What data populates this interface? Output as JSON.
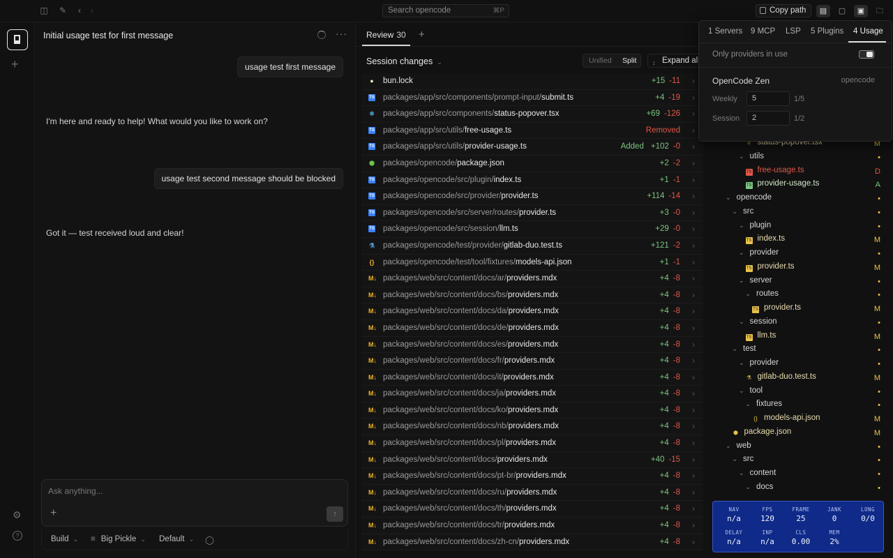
{
  "topbar": {
    "search_placeholder": "Search opencode",
    "search_shortcut": "⌘P",
    "copy_path_label": "Copy path"
  },
  "chat": {
    "title": "Initial usage test for first message",
    "messages": [
      {
        "role": "user",
        "text": "usage test first message"
      },
      {
        "role": "assistant",
        "text": "I'm here and ready to help! What would you like to work on?"
      },
      {
        "role": "user",
        "text": "usage test second message should be blocked"
      },
      {
        "role": "assistant",
        "text": "Got it — test received loud and clear!"
      }
    ],
    "composer_placeholder": "Ask anything...",
    "agent": "Build",
    "model": "Big Pickle",
    "variant": "Default"
  },
  "review": {
    "tab_label": "Review",
    "tab_count": "30",
    "session_changes_label": "Session changes",
    "unified_label": "Unified",
    "split_label": "Split",
    "expand_all_label": "Expand all",
    "files": [
      {
        "dir": "",
        "name": "bun.lock",
        "icon": "bun",
        "added": "+15",
        "removed": "-11"
      },
      {
        "dir": "packages/app/src/components/prompt-input/",
        "name": "submit.ts",
        "icon": "ts",
        "added": "+4",
        "removed": "-19"
      },
      {
        "dir": "packages/app/src/components/",
        "name": "status-popover.tsx",
        "icon": "react",
        "added": "+69",
        "removed": "-126"
      },
      {
        "dir": "packages/app/src/utils/",
        "name": "free-usage.ts",
        "icon": "ts",
        "status": "Removed"
      },
      {
        "dir": "packages/app/src/utils/",
        "name": "provider-usage.ts",
        "icon": "ts",
        "status": "Added",
        "added": "+102",
        "removed": "-0"
      },
      {
        "dir": "packages/opencode/",
        "name": "package.json",
        "icon": "node",
        "added": "+2",
        "removed": "-2"
      },
      {
        "dir": "packages/opencode/src/plugin/",
        "name": "index.ts",
        "icon": "ts",
        "added": "+1",
        "removed": "-1"
      },
      {
        "dir": "packages/opencode/src/provider/",
        "name": "provider.ts",
        "icon": "ts",
        "added": "+114",
        "removed": "-14"
      },
      {
        "dir": "packages/opencode/src/server/routes/",
        "name": "provider.ts",
        "icon": "ts",
        "added": "+3",
        "removed": "-0"
      },
      {
        "dir": "packages/opencode/src/session/",
        "name": "llm.ts",
        "icon": "ts",
        "added": "+29",
        "removed": "-0"
      },
      {
        "dir": "packages/opencode/test/provider/",
        "name": "gitlab-duo.test.ts",
        "icon": "test",
        "added": "+121",
        "removed": "-2"
      },
      {
        "dir": "packages/opencode/test/tool/fixtures/",
        "name": "models-api.json",
        "icon": "json",
        "added": "+1",
        "removed": "-1"
      },
      {
        "dir": "packages/web/src/content/docs/ar/",
        "name": "providers.mdx",
        "icon": "mdx",
        "added": "+4",
        "removed": "-8"
      },
      {
        "dir": "packages/web/src/content/docs/bs/",
        "name": "providers.mdx",
        "icon": "mdx",
        "added": "+4",
        "removed": "-8"
      },
      {
        "dir": "packages/web/src/content/docs/da/",
        "name": "providers.mdx",
        "icon": "mdx",
        "added": "+4",
        "removed": "-8"
      },
      {
        "dir": "packages/web/src/content/docs/de/",
        "name": "providers.mdx",
        "icon": "mdx",
        "added": "+4",
        "removed": "-8"
      },
      {
        "dir": "packages/web/src/content/docs/es/",
        "name": "providers.mdx",
        "icon": "mdx",
        "added": "+4",
        "removed": "-8"
      },
      {
        "dir": "packages/web/src/content/docs/fr/",
        "name": "providers.mdx",
        "icon": "mdx",
        "added": "+4",
        "removed": "-8"
      },
      {
        "dir": "packages/web/src/content/docs/it/",
        "name": "providers.mdx",
        "icon": "mdx",
        "added": "+4",
        "removed": "-8"
      },
      {
        "dir": "packages/web/src/content/docs/ja/",
        "name": "providers.mdx",
        "icon": "mdx",
        "added": "+4",
        "removed": "-8"
      },
      {
        "dir": "packages/web/src/content/docs/ko/",
        "name": "providers.mdx",
        "icon": "mdx",
        "added": "+4",
        "removed": "-8"
      },
      {
        "dir": "packages/web/src/content/docs/nb/",
        "name": "providers.mdx",
        "icon": "mdx",
        "added": "+4",
        "removed": "-8"
      },
      {
        "dir": "packages/web/src/content/docs/pl/",
        "name": "providers.mdx",
        "icon": "mdx",
        "added": "+4",
        "removed": "-8"
      },
      {
        "dir": "packages/web/src/content/docs/",
        "name": "providers.mdx",
        "icon": "mdx",
        "added": "+40",
        "removed": "-15"
      },
      {
        "dir": "packages/web/src/content/docs/pt-br/",
        "name": "providers.mdx",
        "icon": "mdx",
        "added": "+4",
        "removed": "-8"
      },
      {
        "dir": "packages/web/src/content/docs/ru/",
        "name": "providers.mdx",
        "icon": "mdx",
        "added": "+4",
        "removed": "-8"
      },
      {
        "dir": "packages/web/src/content/docs/th/",
        "name": "providers.mdx",
        "icon": "mdx",
        "added": "+4",
        "removed": "-8"
      },
      {
        "dir": "packages/web/src/content/docs/tr/",
        "name": "providers.mdx",
        "icon": "mdx",
        "added": "+4",
        "removed": "-8"
      },
      {
        "dir": "packages/web/src/content/docs/zh-cn/",
        "name": "providers.mdx",
        "icon": "mdx",
        "added": "+4",
        "removed": "-8"
      }
    ]
  },
  "tree": [
    {
      "name": "status-popover.tsx",
      "depth": 4,
      "type": "react",
      "status": "M"
    },
    {
      "name": "utils",
      "depth": 3,
      "type": "folder",
      "status": "•"
    },
    {
      "name": "free-usage.ts",
      "depth": 4,
      "type": "ts-deleted",
      "status": "D"
    },
    {
      "name": "provider-usage.ts",
      "depth": 4,
      "type": "ts-added",
      "status": "A"
    },
    {
      "name": "opencode",
      "depth": 1,
      "type": "folder",
      "status": "•"
    },
    {
      "name": "src",
      "depth": 2,
      "type": "folder",
      "status": "•"
    },
    {
      "name": "plugin",
      "depth": 3,
      "type": "folder",
      "status": "•"
    },
    {
      "name": "index.ts",
      "depth": 4,
      "type": "ts",
      "status": "M"
    },
    {
      "name": "provider",
      "depth": 3,
      "type": "folder",
      "status": "•"
    },
    {
      "name": "provider.ts",
      "depth": 4,
      "type": "ts",
      "status": "M"
    },
    {
      "name": "server",
      "depth": 3,
      "type": "folder",
      "status": "•"
    },
    {
      "name": "routes",
      "depth": 4,
      "type": "folder",
      "status": "•"
    },
    {
      "name": "provider.ts",
      "depth": 5,
      "type": "ts",
      "status": "M"
    },
    {
      "name": "session",
      "depth": 3,
      "type": "folder",
      "status": "•"
    },
    {
      "name": "llm.ts",
      "depth": 4,
      "type": "ts",
      "status": "M"
    },
    {
      "name": "test",
      "depth": 2,
      "type": "folder",
      "status": "•"
    },
    {
      "name": "provider",
      "depth": 3,
      "type": "folder",
      "status": "•"
    },
    {
      "name": "gitlab-duo.test.ts",
      "depth": 4,
      "type": "test",
      "status": "M"
    },
    {
      "name": "tool",
      "depth": 3,
      "type": "folder",
      "status": "•"
    },
    {
      "name": "fixtures",
      "depth": 4,
      "type": "folder",
      "status": "•"
    },
    {
      "name": "models-api.json",
      "depth": 5,
      "type": "json",
      "status": "M"
    },
    {
      "name": "package.json",
      "depth": 2,
      "type": "node",
      "status": "M"
    },
    {
      "name": "web",
      "depth": 1,
      "type": "folder",
      "status": "•"
    },
    {
      "name": "src",
      "depth": 2,
      "type": "folder",
      "status": "•"
    },
    {
      "name": "content",
      "depth": 3,
      "type": "folder",
      "status": "•"
    },
    {
      "name": "docs",
      "depth": 4,
      "type": "folder",
      "status": "•"
    }
  ],
  "popover": {
    "tabs": [
      "1 Servers",
      "9 MCP",
      "LSP",
      "5 Plugins",
      "4 Usage"
    ],
    "active_tab": "4 Usage",
    "only_providers_label": "Only providers in use",
    "provider_name": "OpenCode Zen",
    "provider_id": "opencode",
    "limits": [
      {
        "label": "Weekly",
        "value": "5",
        "max": "1/5"
      },
      {
        "label": "Session",
        "value": "2",
        "max": "1/2"
      }
    ]
  },
  "perf": [
    {
      "key": "NAV",
      "value": "n/a"
    },
    {
      "key": "FPS",
      "value": "120"
    },
    {
      "key": "FRAME",
      "value": "25"
    },
    {
      "key": "JANK",
      "value": "0"
    },
    {
      "key": "LONG",
      "value": "0/0"
    },
    {
      "key": "DELAY",
      "value": "n/a"
    },
    {
      "key": "INP",
      "value": "n/a"
    },
    {
      "key": "CLS",
      "value": "0.00"
    },
    {
      "key": "MEM",
      "value": "2%"
    }
  ],
  "colors": {
    "added": "#7cc582",
    "removed": "#e0584a",
    "modified": "#e8c24a",
    "perf_bg": "#0f2a88",
    "ts_icon": "#3b82f6",
    "mdx_icon": "#f0b429"
  }
}
